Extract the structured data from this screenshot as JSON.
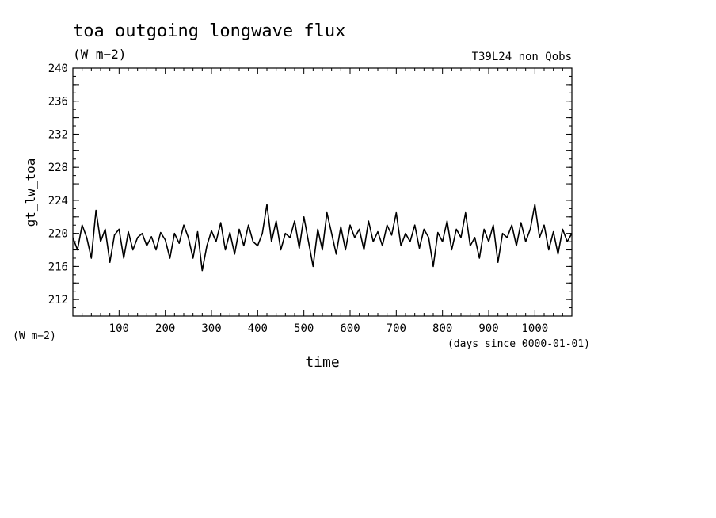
{
  "chart_data": {
    "type": "line",
    "title": "toa outgoing longwave flux",
    "units": "(W m−2)",
    "run_label": "T39L24_non_Qobs",
    "ylabel": "gt_lw_toa",
    "y_units_label": "(W m−2)",
    "xlabel": "time",
    "x_units_label": "(days since 0000-01-01)",
    "xlim": [
      0,
      1080
    ],
    "ylim": [
      210,
      240
    ],
    "x_ticks": [
      100,
      200,
      300,
      400,
      500,
      600,
      700,
      800,
      900,
      1000
    ],
    "y_ticks": [
      212,
      216,
      220,
      224,
      228,
      232,
      236,
      240
    ],
    "grid": false,
    "series": [
      {
        "x": [
          0,
          10,
          20,
          30,
          40,
          50,
          60,
          70,
          80,
          90,
          100,
          110,
          120,
          130,
          140,
          150,
          160,
          170,
          180,
          190,
          200,
          210,
          220,
          230,
          240,
          250,
          260,
          270,
          280,
          290,
          300,
          310,
          320,
          330,
          340,
          350,
          360,
          370,
          380,
          390,
          400,
          410,
          420,
          430,
          440,
          450,
          460,
          470,
          480,
          490,
          500,
          510,
          520,
          530,
          540,
          550,
          560,
          570,
          580,
          590,
          600,
          610,
          620,
          630,
          640,
          650,
          660,
          670,
          680,
          690,
          700,
          710,
          720,
          730,
          740,
          750,
          760,
          770,
          780,
          790,
          800,
          810,
          820,
          830,
          840,
          850,
          860,
          870,
          880,
          890,
          900,
          910,
          920,
          930,
          940,
          950,
          960,
          970,
          980,
          990,
          1000,
          1010,
          1020,
          1030,
          1040,
          1050,
          1060,
          1070,
          1080
        ],
        "values": [
          219.5,
          218.0,
          221.0,
          219.5,
          217.0,
          222.8,
          219.0,
          220.5,
          216.5,
          219.8,
          220.5,
          217.0,
          220.2,
          218.0,
          219.5,
          220.0,
          218.5,
          219.6,
          218.0,
          220.1,
          219.2,
          217.0,
          220.0,
          218.8,
          221.0,
          219.5,
          217.0,
          220.2,
          215.5,
          218.5,
          220.3,
          219.0,
          221.3,
          218.0,
          220.1,
          217.5,
          220.5,
          218.5,
          221.0,
          219.0,
          218.5,
          220.0,
          223.5,
          219.0,
          221.5,
          218.0,
          220.0,
          219.5,
          221.5,
          218.2,
          222.0,
          219.0,
          216.0,
          220.5,
          218.0,
          222.5,
          220.0,
          217.5,
          220.8,
          218.0,
          221.0,
          219.5,
          220.5,
          218.0,
          221.5,
          219.0,
          220.2,
          218.5,
          221.0,
          219.8,
          222.5,
          218.5,
          220.0,
          219.0,
          221.0,
          218.2,
          220.5,
          219.5,
          216.0,
          220.1,
          219.0,
          221.5,
          218.0,
          220.5,
          219.5,
          222.5,
          218.5,
          219.5,
          217.0,
          220.5,
          219.0,
          221.0,
          216.5,
          220.0,
          219.5,
          221.0,
          218.5,
          221.3,
          219.0,
          220.5,
          223.5,
          219.5,
          221.0,
          218.0,
          220.2,
          217.5,
          220.5,
          219.0,
          220.0
        ]
      }
    ]
  }
}
